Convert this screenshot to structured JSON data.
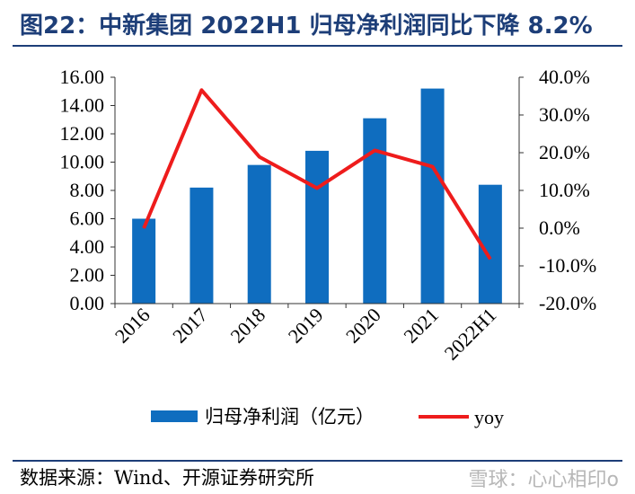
{
  "header": {
    "title": "图22：中新集团 2022H1 归母净利润同比下降 8.2%"
  },
  "footer": {
    "source": "数据来源：Wind、开源证券研究所",
    "watermark": "雪球：心心相印o"
  },
  "chart_data": {
    "type": "bar",
    "categories": [
      "2016",
      "2017",
      "2018",
      "2019",
      "2020",
      "2021",
      "2022H1"
    ],
    "series": [
      {
        "name": "归母净利润（亿元）",
        "type": "bar",
        "axis": "left",
        "color": "#0f6dbf",
        "values": [
          6.0,
          8.2,
          9.8,
          10.8,
          13.1,
          15.2,
          8.4
        ]
      },
      {
        "name": "yoy",
        "type": "line",
        "axis": "right",
        "color": "#ee1c1c",
        "values": [
          0.0,
          36.6,
          18.9,
          10.6,
          20.6,
          16.3,
          -8.2
        ]
      }
    ],
    "ylim_left": [
      0,
      16
    ],
    "left_ticks": [
      "0.00",
      "2.00",
      "4.00",
      "6.00",
      "8.00",
      "10.00",
      "12.00",
      "14.00",
      "16.00"
    ],
    "ylim_right": [
      -20,
      40
    ],
    "right_ticks": [
      "-20.0%",
      "-10.0%",
      "0.0%",
      "10.0%",
      "20.0%",
      "30.0%",
      "40.0%"
    ],
    "grid": false,
    "legend_position": "bottom"
  }
}
